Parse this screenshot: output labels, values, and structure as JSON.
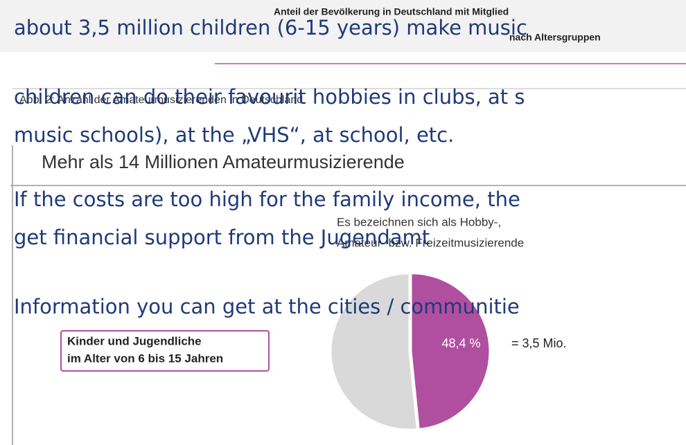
{
  "slide": {
    "lines": [
      "about 3,5 million children (6-15 years) make music",
      "children can do their favourit hobbies in clubs, at s",
      "music schools), at the „VHS“, at school, etc.",
      "If the costs are too high for the family income, the",
      "get financial support from the Jugendamt",
      "Information you can get at the cities / communitie"
    ]
  },
  "image": {
    "header": [
      "Anteil der Bevölkerung in Deutschland mit Mitglied",
      "nach Altersgruppen"
    ],
    "caption": "Abb. 2: Anzahl der Amateurmusizierenden in Deutschland",
    "title": "Mehr als 14 Millionen Amateurmusizierende",
    "subtitle": [
      "Es bezeichnen sich als Hobby-,",
      "Amateur- bzw. Freizeitmusizierende"
    ],
    "box": [
      "Kinder und Jugendliche",
      "im Alter von 6 bis 15 Jahren"
    ],
    "note": "= 3,5 Mio."
  },
  "chart_data": {
    "type": "pie",
    "values": [
      48.4,
      51.6
    ],
    "value_labels": [
      "48,4 %",
      null
    ],
    "colors": [
      "#b04f9f",
      "#d9d9d9"
    ]
  }
}
